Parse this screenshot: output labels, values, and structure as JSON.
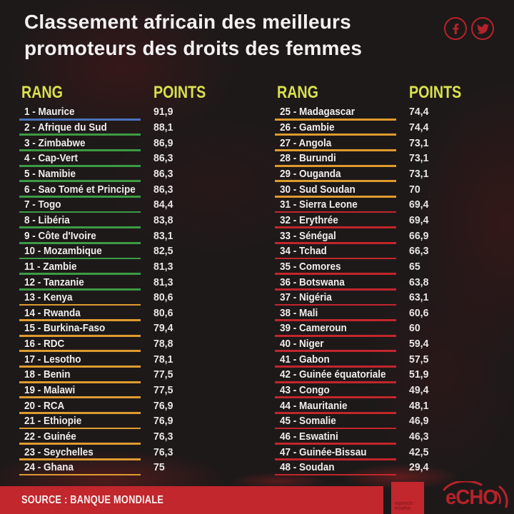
{
  "title": {
    "line1": "Classement africain des meilleurs",
    "line2": "promoteurs des droits des femmes"
  },
  "social": {
    "facebook": "facebook",
    "twitter": "twitter"
  },
  "chart_data": {
    "type": "table",
    "title": "Classement africain des meilleurs promoteurs des droits des femmes",
    "columns": [
      "RANG",
      "POINTS"
    ],
    "rows": [
      {
        "rank": 1,
        "name": "Maurice",
        "points": 91.9,
        "tier": "blue"
      },
      {
        "rank": 2,
        "name": "Afrique du Sud",
        "points": 88.1,
        "tier": "green"
      },
      {
        "rank": 3,
        "name": "Zimbabwe",
        "points": 86.9,
        "tier": "green"
      },
      {
        "rank": 4,
        "name": "Cap-Vert",
        "points": 86.3,
        "tier": "green"
      },
      {
        "rank": 5,
        "name": "Namibie",
        "points": 86.3,
        "tier": "green"
      },
      {
        "rank": 6,
        "name": "Sao Tomé et Principe",
        "points": 86.3,
        "tier": "green"
      },
      {
        "rank": 7,
        "name": "Togo",
        "points": 84.4,
        "tier": "green"
      },
      {
        "rank": 8,
        "name": "Libéria",
        "points": 83.8,
        "tier": "green"
      },
      {
        "rank": 9,
        "name": "Côte d'Ivoire",
        "points": 83.1,
        "tier": "green"
      },
      {
        "rank": 10,
        "name": "Mozambique",
        "points": 82.5,
        "tier": "green"
      },
      {
        "rank": 11,
        "name": "Zambie",
        "points": 81.3,
        "tier": "green"
      },
      {
        "rank": 12,
        "name": "Tanzanie",
        "points": 81.3,
        "tier": "green"
      },
      {
        "rank": 13,
        "name": "Kenya",
        "points": 80.6,
        "tier": "orange"
      },
      {
        "rank": 14,
        "name": "Rwanda",
        "points": 80.6,
        "tier": "orange"
      },
      {
        "rank": 15,
        "name": "Burkina-Faso",
        "points": 79.4,
        "tier": "orange"
      },
      {
        "rank": 16,
        "name": "RDC",
        "points": 78.8,
        "tier": "orange"
      },
      {
        "rank": 17,
        "name": "Lesotho",
        "points": 78.1,
        "tier": "orange"
      },
      {
        "rank": 18,
        "name": "Benin",
        "points": 77.5,
        "tier": "orange"
      },
      {
        "rank": 19,
        "name": "Malawi",
        "points": 77.5,
        "tier": "orange"
      },
      {
        "rank": 20,
        "name": "RCA",
        "points": 76.9,
        "tier": "orange"
      },
      {
        "rank": 21,
        "name": "Ethiopie",
        "points": 76.9,
        "tier": "orange"
      },
      {
        "rank": 22,
        "name": "Guinée",
        "points": 76.3,
        "tier": "orange"
      },
      {
        "rank": 23,
        "name": "Seychelles",
        "points": 76.3,
        "tier": "orange"
      },
      {
        "rank": 24,
        "name": "Ghana",
        "points": 75,
        "tier": "orange"
      },
      {
        "rank": 25,
        "name": "Madagascar",
        "points": 74.4,
        "tier": "orange"
      },
      {
        "rank": 26,
        "name": "Gambie",
        "points": 74.4,
        "tier": "orange"
      },
      {
        "rank": 27,
        "name": "Angola",
        "points": 73.1,
        "tier": "orange"
      },
      {
        "rank": 28,
        "name": "Burundi",
        "points": 73.1,
        "tier": "orange"
      },
      {
        "rank": 29,
        "name": "Ouganda",
        "points": 73.1,
        "tier": "orange"
      },
      {
        "rank": 30,
        "name": "Sud Soudan",
        "points": 70,
        "tier": "orange"
      },
      {
        "rank": 31,
        "name": "Sierra Leone",
        "points": 69.4,
        "tier": "red"
      },
      {
        "rank": 32,
        "name": "Erythrée",
        "points": 69.4,
        "tier": "red"
      },
      {
        "rank": 33,
        "name": "Sénégal",
        "points": 66.9,
        "tier": "red"
      },
      {
        "rank": 34,
        "name": "Tchad",
        "points": 66.3,
        "tier": "red"
      },
      {
        "rank": 35,
        "name": "Comores",
        "points": 65,
        "tier": "red"
      },
      {
        "rank": 36,
        "name": "Botswana",
        "points": 63.8,
        "tier": "red"
      },
      {
        "rank": 37,
        "name": "Nigéria",
        "points": 63.1,
        "tier": "red"
      },
      {
        "rank": 38,
        "name": "Mali",
        "points": 60.6,
        "tier": "red"
      },
      {
        "rank": 39,
        "name": "Cameroun",
        "points": 60,
        "tier": "red"
      },
      {
        "rank": 40,
        "name": "Niger",
        "points": 59.4,
        "tier": "red"
      },
      {
        "rank": 41,
        "name": "Gabon",
        "points": 57.5,
        "tier": "red"
      },
      {
        "rank": 42,
        "name": "Guinée équatoriale",
        "points": 51.9,
        "tier": "red"
      },
      {
        "rank": 43,
        "name": "Congo",
        "points": 49.4,
        "tier": "red"
      },
      {
        "rank": 44,
        "name": "Mauritanie",
        "points": 48.1,
        "tier": "red"
      },
      {
        "rank": 45,
        "name": "Somalie",
        "points": 46.9,
        "tier": "red"
      },
      {
        "rank": 46,
        "name": "Eswatini",
        "points": 46.3,
        "tier": "red"
      },
      {
        "rank": 47,
        "name": "Guinée-Bissau",
        "points": 42.5,
        "tier": "red"
      },
      {
        "rank": 48,
        "name": "Soudan",
        "points": 29.4,
        "tier": "red"
      }
    ],
    "decimal_separator": ",",
    "source": "BANQUE MONDIALE"
  },
  "tier_colors": {
    "blue": "#4a72bb",
    "green": "#3b9b45",
    "orange": "#dd9b2f",
    "red": "#c1262c"
  },
  "colors": {
    "background": "#1e1919",
    "text_white": "#f3f1f1",
    "header_yellow": "#d9e14d",
    "accent_red": "#b7222a",
    "footer_red": "#c1272d",
    "agency_text_red": "#8c191d"
  },
  "footer": {
    "source": "SOURCE : BANQUE MONDIALE",
    "agency": "agence ecofin",
    "logo": "eCHO"
  }
}
